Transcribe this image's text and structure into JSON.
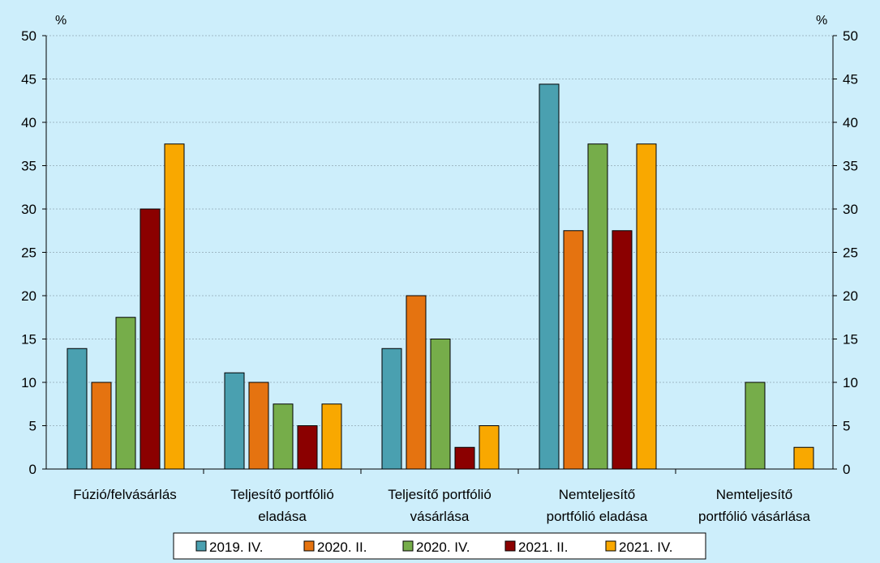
{
  "chart_data": {
    "type": "bar",
    "title": "",
    "y_unit_left": "%",
    "y_unit_right": "%",
    "ylim": [
      0,
      50
    ],
    "yticks": [
      0,
      5,
      10,
      15,
      20,
      25,
      30,
      35,
      40,
      45,
      50
    ],
    "grid": true,
    "legend_position": "bottom",
    "categories": [
      [
        "Fúzió/felvásárlás"
      ],
      [
        "Teljesítő portfólió",
        "eladása"
      ],
      [
        "Teljesítő portfólió",
        "vásárlása"
      ],
      [
        "Nemteljesítő",
        "portfólió eladása"
      ],
      [
        "Nemteljesítő",
        "portfólió vásárlása"
      ]
    ],
    "series": [
      {
        "name": "2019. IV.",
        "color": "#4aa0b0",
        "values": [
          13.9,
          11.1,
          13.9,
          44.4,
          0
        ]
      },
      {
        "name": "2020. II.",
        "color": "#e57310",
        "values": [
          10,
          10,
          20,
          27.5,
          0
        ]
      },
      {
        "name": "2020. IV.",
        "color": "#76ad4a",
        "values": [
          17.5,
          7.5,
          15,
          37.5,
          10
        ]
      },
      {
        "name": "2021. II.",
        "color": "#8b0000",
        "values": [
          30,
          5,
          2.5,
          27.5,
          0
        ]
      },
      {
        "name": "2021. IV.",
        "color": "#f9a800",
        "values": [
          37.5,
          7.5,
          5,
          37.5,
          2.5
        ]
      }
    ]
  }
}
